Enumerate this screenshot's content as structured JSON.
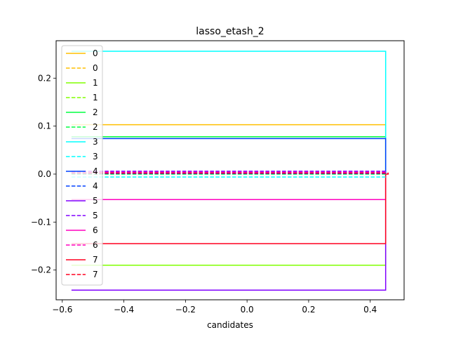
{
  "chart_data": {
    "type": "line",
    "title": "lasso_etash_2",
    "xlabel": "candidates",
    "ylabel": "",
    "xlim": [
      -0.62,
      0.51
    ],
    "ylim": [
      -0.262,
      0.278
    ],
    "xticks": [
      -0.6,
      -0.4,
      -0.2,
      0.0,
      0.2,
      0.4
    ],
    "xtick_labels": [
      "−0.6",
      "−0.4",
      "−0.2",
      "0.0",
      "0.2",
      "0.4"
    ],
    "yticks": [
      -0.2,
      -0.1,
      0.0,
      0.1,
      0.2
    ],
    "ytick_labels": [
      "−0.2",
      "−0.1",
      "0.0",
      "0.1",
      "0.2"
    ],
    "grid": false,
    "legend_position": "upper-left",
    "series": [
      {
        "name": "0",
        "color": "#ffbf00",
        "style": "solid",
        "x": [
          -0.57,
          0.45,
          0.45
        ],
        "y": [
          0.103,
          0.103,
          0.0
        ]
      },
      {
        "name": "0",
        "color": "#ffbf00",
        "style": "dashed",
        "x": [
          -0.57,
          0.45
        ],
        "y": [
          0.005,
          0.005
        ]
      },
      {
        "name": "1",
        "color": "#80ff00",
        "style": "solid",
        "x": [
          -0.57,
          0.45,
          0.45
        ],
        "y": [
          -0.19,
          -0.19,
          0.0
        ]
      },
      {
        "name": "1",
        "color": "#80ff00",
        "style": "dashed",
        "x": [
          -0.57,
          0.45
        ],
        "y": [
          0.003,
          0.003
        ]
      },
      {
        "name": "2",
        "color": "#00ff40",
        "style": "solid",
        "x": [
          -0.57,
          0.45,
          0.45
        ],
        "y": [
          0.078,
          0.078,
          0.0
        ]
      },
      {
        "name": "2",
        "color": "#00ff40",
        "style": "dashed",
        "x": [
          -0.57,
          0.45
        ],
        "y": [
          0.0,
          0.0
        ]
      },
      {
        "name": "3",
        "color": "#00ffff",
        "style": "solid",
        "x": [
          -0.57,
          0.45,
          0.45
        ],
        "y": [
          0.256,
          0.256,
          0.0
        ]
      },
      {
        "name": "3",
        "color": "#00ffff",
        "style": "dashed",
        "x": [
          -0.57,
          0.45
        ],
        "y": [
          -0.006,
          -0.006
        ]
      },
      {
        "name": "4",
        "color": "#0040ff",
        "style": "solid",
        "x": [
          -0.57,
          0.45,
          0.45
        ],
        "y": [
          0.074,
          0.074,
          0.0
        ]
      },
      {
        "name": "4",
        "color": "#0040ff",
        "style": "dashed",
        "x": [
          -0.57,
          0.45
        ],
        "y": [
          0.001,
          0.001
        ]
      },
      {
        "name": "5",
        "color": "#8000ff",
        "style": "solid",
        "x": [
          -0.57,
          0.45,
          0.45
        ],
        "y": [
          -0.242,
          -0.242,
          0.0
        ]
      },
      {
        "name": "5",
        "color": "#8000ff",
        "style": "dashed",
        "x": [
          -0.57,
          0.45
        ],
        "y": [
          0.006,
          0.006
        ]
      },
      {
        "name": "6",
        "color": "#ff00bf",
        "style": "solid",
        "x": [
          -0.57,
          0.45,
          0.45
        ],
        "y": [
          -0.053,
          -0.053,
          0.0
        ]
      },
      {
        "name": "6",
        "color": "#ff00bf",
        "style": "dashed",
        "x": [
          -0.57,
          0.45
        ],
        "y": [
          0.004,
          0.004
        ]
      },
      {
        "name": "7",
        "color": "#ff0020",
        "style": "solid",
        "x": [
          -0.57,
          0.45,
          0.45,
          0.46
        ],
        "y": [
          -0.145,
          -0.145,
          0.0,
          0.0
        ]
      },
      {
        "name": "7",
        "color": "#ff0020",
        "style": "dashed",
        "x": [
          -0.57,
          0.46
        ],
        "y": [
          0.002,
          0.002
        ]
      }
    ]
  }
}
